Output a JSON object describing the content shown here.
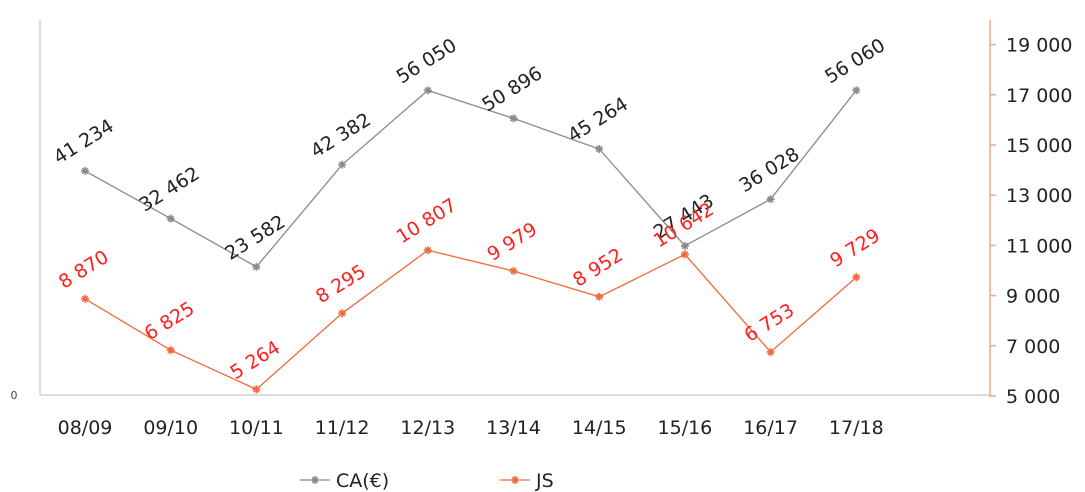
{
  "chart_data": {
    "type": "line",
    "categories": [
      "08/09",
      "09/10",
      "10/11",
      "11/12",
      "12/13",
      "13/14",
      "14/15",
      "15/16",
      "16/17",
      "17/18"
    ],
    "series": [
      {
        "name": "CA(€)",
        "axis": "left",
        "color": "#8a8a8a",
        "values": [
          41234,
          32462,
          23582,
          42382,
          56050,
          50896,
          45264,
          27443,
          36028,
          56060
        ],
        "labels": [
          "41 234",
          "32 462",
          "23 582",
          "42 382",
          "56 050",
          "50 896",
          "45 264",
          "27 443",
          "36 028",
          "56 060"
        ]
      },
      {
        "name": "JS",
        "axis": "right",
        "color": "#f26a3c",
        "values": [
          8870,
          6825,
          5264,
          8295,
          10807,
          9979,
          8952,
          10642,
          6753,
          9729
        ],
        "labels": [
          "8 870",
          "6 825",
          "5 264",
          "8 295",
          "10 807",
          "9 979",
          "8 952",
          "10 642",
          "6 753",
          "9 729"
        ]
      }
    ],
    "left_axis": {
      "ticks": [
        "0"
      ],
      "range": [
        0,
        69000
      ]
    },
    "right_axis": {
      "ticks": [
        "5 000",
        "7 000",
        "9 000",
        "11 000",
        "13 000",
        "15 000",
        "17 000",
        "19 000"
      ],
      "range": [
        5000,
        19000
      ]
    },
    "legend": {
      "position": "bottom",
      "entries": [
        "CA(€)",
        "JS"
      ]
    },
    "grid": false,
    "label_color_js": "#ff2020",
    "axis_line_right_color": "#f4a58a",
    "axis_line_left_color": "#d0d0d0"
  }
}
